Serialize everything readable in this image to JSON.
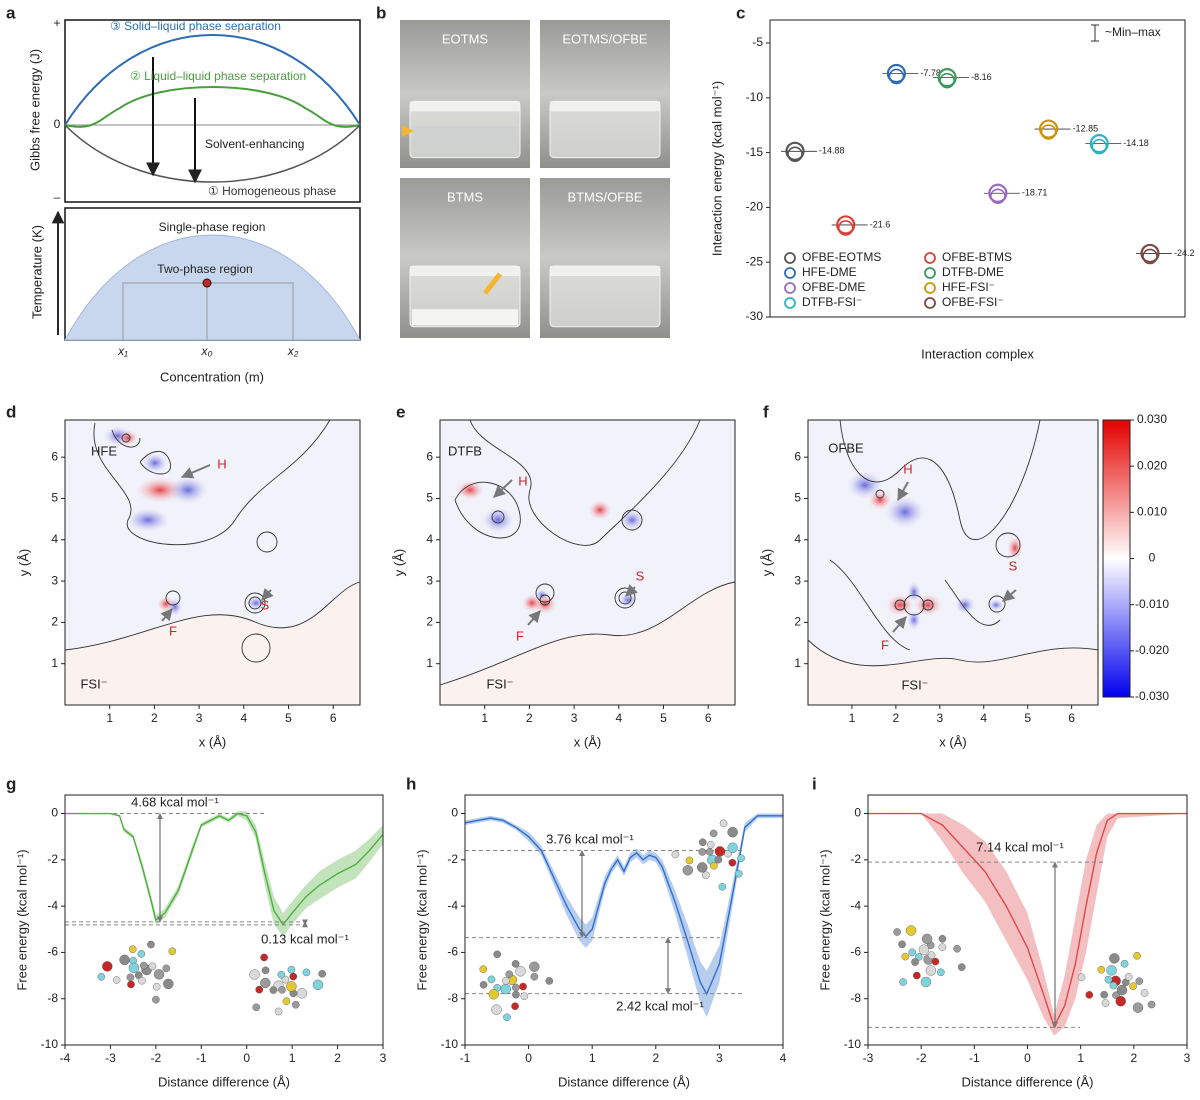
{
  "chart_data": [
    {
      "type": "diagram",
      "panel": "a",
      "ylabel": "Gibbs free energy (J)",
      "ytick_labels": [
        "+",
        "0",
        "–"
      ],
      "curve_labels": [
        "③ Solid–liquid phase separation",
        "② Liquid–liquid phase separation",
        "Solvent-enhancing",
        "① Homogeneous phase"
      ],
      "lower": {
        "ylabel": "Temperature (K)",
        "regions": [
          "Single-phase region",
          "Two-phase region"
        ],
        "xtick_labels": [
          "x₁",
          "x₀",
          "x₂"
        ],
        "xlabel": "Concentration (m)"
      }
    },
    {
      "type": "photo",
      "panel": "b",
      "labels": [
        "EOTMS",
        "EOTMS/OFBE",
        "BTMS",
        "BTMS/OFBE"
      ]
    },
    {
      "type": "scatter",
      "panel": "c",
      "xlabel": "Interaction complex",
      "ylabel": "Interaction energy (kcal mol⁻¹)",
      "annotation": "~Min–max",
      "ylim": [
        -30,
        -2.9
      ],
      "yticks": [
        -30,
        -25,
        -20,
        -15,
        -10,
        -5
      ],
      "series": [
        {
          "name": "OFBE-EOTMS",
          "color": "#555555",
          "values": [
            -14.88
          ]
        },
        {
          "name": "OFBE-BTMS",
          "color": "#d9403a",
          "values": [
            -21.6
          ]
        },
        {
          "name": "HFE-DME",
          "color": "#2e6db4",
          "values": [
            -7.78
          ]
        },
        {
          "name": "DTFB-DME",
          "color": "#3a9a5b",
          "values": [
            -8.16
          ]
        },
        {
          "name": "OFBE-DME",
          "color": "#9a6bbf",
          "values": [
            -18.71
          ]
        },
        {
          "name": "HFE-FSI⁻",
          "color": "#c9940f",
          "values": [
            -12.85
          ]
        },
        {
          "name": "DTFB-FSI⁻",
          "color": "#2bb3c0",
          "values": [
            -14.18
          ]
        },
        {
          "name": "OFBE-FSI⁻",
          "color": "#7a4a42",
          "values": [
            -24.2
          ]
        }
      ]
    },
    {
      "type": "contour",
      "panel": "d",
      "xlabel": "x (Å)",
      "ylabel": "y (Å)",
      "xlim": [
        0,
        6.6
      ],
      "xticks": [
        1,
        2,
        3,
        4,
        5,
        6
      ],
      "ylim": [
        0,
        6.9
      ],
      "yticks": [
        1,
        2,
        3,
        4,
        5,
        6
      ],
      "labels": [
        "HFE",
        "H",
        "F",
        "S",
        "FSI⁻"
      ]
    },
    {
      "type": "contour",
      "panel": "e",
      "xlabel": "x (Å)",
      "ylabel": "y (Å)",
      "xlim": [
        0,
        6.6
      ],
      "xticks": [
        1,
        2,
        3,
        4,
        5,
        6
      ],
      "ylim": [
        0,
        6.9
      ],
      "yticks": [
        1,
        2,
        3,
        4,
        5,
        6
      ],
      "labels": [
        "DTFB",
        "H",
        "F",
        "S",
        "FSI⁻"
      ]
    },
    {
      "type": "contour",
      "panel": "f",
      "xlabel": "x (Å)",
      "ylabel": "y (Å)",
      "xlim": [
        0,
        6.6
      ],
      "xticks": [
        1,
        2,
        3,
        4,
        5,
        6
      ],
      "ylim": [
        0,
        6.9
      ],
      "yticks": [
        1,
        2,
        3,
        4,
        5,
        6
      ],
      "labels": [
        "OFBE",
        "H",
        "F",
        "S",
        "FSI⁻"
      ],
      "colorbar": {
        "lim": [
          -0.03,
          0.03
        ],
        "ticks": [
          {
            "value": 0.03,
            "label": "0.030"
          },
          {
            "value": 0.02,
            "label": "0.020"
          },
          {
            "value": 0.01,
            "label": "0.010"
          },
          0,
          {
            "value": -0.01,
            "label": "-0.010"
          },
          {
            "value": -0.02,
            "label": "-0.020"
          },
          {
            "value": -0.03,
            "label": "-0.030"
          }
        ]
      }
    },
    {
      "type": "line",
      "panel": "g",
      "xlabel": "Distance difference (Å)",
      "ylabel": "Free energy (kcal mol⁻¹)",
      "xlim": [
        -4,
        3
      ],
      "xticks": [
        -4,
        -3,
        -2,
        -1,
        0,
        1,
        2,
        3
      ],
      "ylim": [
        -10,
        0.8
      ],
      "yticks": [
        -10,
        -8,
        -6,
        -4,
        -2,
        0
      ],
      "color": "#4fae3f",
      "x": [
        -4,
        -3,
        -2.8,
        -2.7,
        -2.5,
        -2.3,
        -2.1,
        -2,
        -1.8,
        -1.5,
        -1.2,
        -1,
        -0.8,
        -0.6,
        -0.4,
        -0.2,
        0,
        0.2,
        0.4,
        0.6,
        0.8,
        1,
        1.3,
        1.6,
        2,
        2.4,
        2.7,
        3
      ],
      "values": [
        0,
        0,
        -0.1,
        -0.7,
        -1,
        -2.3,
        -3.8,
        -4.6,
        -4.3,
        -3.3,
        -1.6,
        -0.5,
        -0.3,
        -0.1,
        -0.3,
        0,
        -0.1,
        -0.8,
        -2.6,
        -4.2,
        -4.8,
        -4.3,
        -3.6,
        -3.1,
        -2.6,
        -2.2,
        -1.6,
        -0.9
      ],
      "upper": [
        0,
        0,
        -0.05,
        -0.6,
        -0.9,
        -2.1,
        -3.6,
        -4.4,
        -4.1,
        -3.1,
        -1.4,
        -0.4,
        -0.2,
        0,
        -0.2,
        0.1,
        0.1,
        -0.5,
        -2.1,
        -3.6,
        -4.3,
        -3.8,
        -3.1,
        -2.5,
        -2,
        -1.6,
        -1.1,
        -0.5
      ],
      "lower": [
        0,
        0,
        -0.15,
        -0.8,
        -1.1,
        -2.5,
        -4,
        -4.8,
        -4.5,
        -3.5,
        -1.8,
        -0.6,
        -0.4,
        -0.2,
        -0.4,
        -0.1,
        -0.3,
        -1.1,
        -3.1,
        -4.8,
        -5.3,
        -4.8,
        -4.1,
        -3.7,
        -3.2,
        -2.8,
        -2.1,
        -1.3
      ],
      "hlines": [
        0,
        -4.68,
        -4.81
      ],
      "annotations": [
        "4.68 kcal mol⁻¹",
        "0.13 kcal mol⁻¹"
      ]
    },
    {
      "type": "line",
      "panel": "h",
      "xlabel": "Distance difference (Å)",
      "ylabel": "Free energy (kcal mol⁻¹)",
      "xlim": [
        -1,
        4
      ],
      "xticks": [
        -1,
        0,
        1,
        2,
        3,
        4
      ],
      "ylim": [
        -10,
        0.8
      ],
      "yticks": [
        -10,
        -8,
        -6,
        -4,
        -2,
        0
      ],
      "color": "#2f6fcf",
      "x": [
        -1,
        -0.8,
        -0.6,
        -0.4,
        -0.2,
        0,
        0.2,
        0.4,
        0.6,
        0.8,
        0.9,
        1,
        1.2,
        1.3,
        1.4,
        1.5,
        1.6,
        1.7,
        1.8,
        1.9,
        2,
        2.1,
        2.3,
        2.5,
        2.7,
        2.8,
        3,
        3.2,
        3.4,
        3.6,
        4
      ],
      "values": [
        -0.4,
        -0.3,
        -0.2,
        -0.3,
        -0.6,
        -1,
        -1.6,
        -2.8,
        -4,
        -5,
        -5.3,
        -5,
        -3,
        -2.4,
        -2,
        -2.5,
        -1.9,
        -1.7,
        -2,
        -1.8,
        -1.9,
        -2.3,
        -3.8,
        -5.5,
        -7.3,
        -7.8,
        -6.5,
        -3.6,
        -0.6,
        -0.1,
        -0.1
      ],
      "upper": [
        -0.3,
        -0.2,
        -0.1,
        -0.2,
        -0.5,
        -0.8,
        -1.4,
        -2.5,
        -3.6,
        -4.5,
        -4.8,
        -4.5,
        -2.7,
        -2.2,
        -1.8,
        -2.3,
        -1.7,
        -1.5,
        -1.8,
        -1.6,
        -1.7,
        -2,
        -3.3,
        -4.8,
        -6.4,
        -6.8,
        -5.7,
        -3.1,
        -0.4,
        0,
        0
      ],
      "lower": [
        -0.5,
        -0.4,
        -0.3,
        -0.4,
        -0.7,
        -1.2,
        -1.8,
        -3.1,
        -4.4,
        -5.5,
        -5.8,
        -5.5,
        -3.3,
        -2.6,
        -2.2,
        -2.7,
        -2.1,
        -1.9,
        -2.2,
        -2,
        -2.1,
        -2.6,
        -4.3,
        -6.2,
        -8.2,
        -8.8,
        -7.3,
        -4.1,
        -0.8,
        -0.2,
        -0.2
      ],
      "hlines": [
        -1.6,
        -5.36,
        -7.78
      ],
      "annotations": [
        "3.76 kcal mol⁻¹",
        "2.42 kcal mol⁻¹"
      ]
    },
    {
      "type": "line",
      "panel": "i",
      "xlabel": "Distance difference (Å)",
      "ylabel": "Free energy (kcal mol⁻¹)",
      "xlim": [
        -3,
        3
      ],
      "xticks": [
        -3,
        -2,
        -1,
        0,
        1,
        2,
        3
      ],
      "ylim": [
        -10,
        0.8
      ],
      "yticks": [
        -10,
        -8,
        -6,
        -4,
        -2,
        0
      ],
      "color": "#e0484a",
      "x": [
        -3,
        -2,
        -1.6,
        -1.2,
        -0.8,
        -0.4,
        0,
        0.3,
        0.5,
        0.7,
        0.9,
        1.1,
        1.3,
        1.5,
        1.7,
        3
      ],
      "values": [
        0,
        0,
        -0.5,
        -1.5,
        -2.5,
        -4,
        -5.8,
        -7.8,
        -9.2,
        -8.3,
        -6.5,
        -4,
        -1.7,
        -0.3,
        0,
        0
      ],
      "upper": [
        0,
        0,
        0,
        -0.5,
        -1.2,
        -2.5,
        -4.3,
        -6.8,
        -8.7,
        -7,
        -4.5,
        -2,
        -0.5,
        0,
        0,
        0
      ],
      "lower": [
        0,
        0,
        -1.2,
        -2.6,
        -3.8,
        -5.5,
        -7.2,
        -8.8,
        -9.6,
        -9.2,
        -8,
        -6,
        -3.5,
        -1,
        -0.2,
        0
      ],
      "hlines": [
        -2.1,
        -9.24
      ],
      "annotations": [
        "7.14 kcal mol⁻¹"
      ]
    }
  ]
}
